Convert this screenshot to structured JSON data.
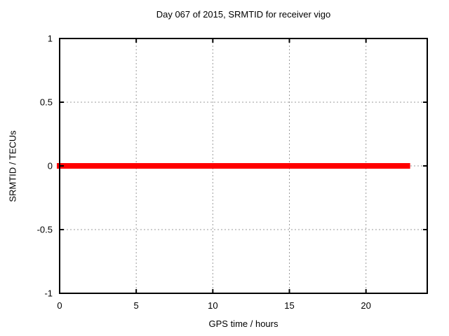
{
  "colors": {
    "background": "#ffffff",
    "border": "#000000",
    "grid": "#9b9b9b",
    "text": "#000000",
    "series_red": "#ff0000"
  },
  "chart_data": {
    "type": "line",
    "title": "Day 067 of 2015, SRMTID for receiver vigo",
    "xlabel": "GPS time / hours",
    "ylabel": "SRMTID / TECUs",
    "xlim": [
      0,
      24
    ],
    "ylim": [
      -1,
      1
    ],
    "x_ticks": [
      "0",
      "5",
      "10",
      "15",
      "20"
    ],
    "x_tick_values": [
      0,
      5,
      10,
      15,
      20
    ],
    "y_ticks": [
      "1",
      "0.5",
      "0",
      "-0.5",
      "-1"
    ],
    "y_tick_values": [
      1,
      0.5,
      0,
      -0.5,
      -1
    ],
    "grid": true,
    "grid_style": "dashed",
    "legend": "none",
    "series": [
      {
        "name": "SRMTID",
        "color": "#ff0000",
        "line_width": 8,
        "x": [
          0,
          22.7
        ],
        "y": [
          0,
          0
        ]
      }
    ]
  }
}
